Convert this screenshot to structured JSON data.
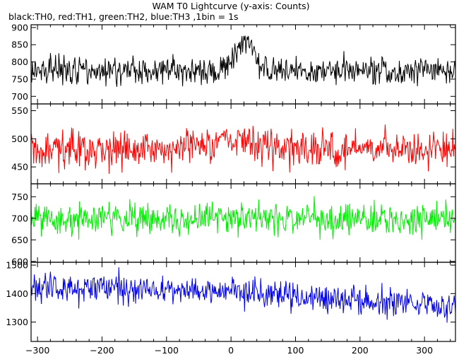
{
  "chart_data": {
    "type": "line",
    "title": "WAM T0 Lightcurve (y-axis: Counts)",
    "subtitle": "black:TH0, red:TH1, green:TH2, blue:TH3 ,1bin = 1s",
    "x_range": [
      -310,
      348
    ],
    "x_ticks": [
      -300,
      -200,
      -100,
      0,
      100,
      200,
      300
    ],
    "bin_seconds": 1,
    "grid": false,
    "panels": [
      {
        "name": "TH0",
        "color": "#000000",
        "ylim": [
          678,
          908
        ],
        "y_ticks": [
          700,
          750,
          800,
          850,
          900
        ],
        "base": 775,
        "noise": 28,
        "peaks": [
          {
            "t": 22,
            "amp": 80,
            "width": 14
          }
        ],
        "trend": []
      },
      {
        "name": "TH1",
        "color": "#ff0000",
        "ylim": [
          420,
          562
        ],
        "y_ticks": [
          450,
          500,
          550
        ],
        "base": 482,
        "noise": 22,
        "peaks": [
          {
            "t": 20,
            "amp": 18,
            "width": 25
          }
        ],
        "trend": []
      },
      {
        "name": "TH2",
        "color": "#00ee00",
        "ylim": [
          598,
          780
        ],
        "y_ticks": [
          600,
          650,
          700,
          750
        ],
        "base": 700,
        "noise": 26,
        "peaks": [],
        "trend": []
      },
      {
        "name": "TH3",
        "color": "#0000ee",
        "ylim": [
          1232,
          1510
        ],
        "y_ticks": [
          1300,
          1400,
          1500
        ],
        "base": 1420,
        "noise": 35,
        "peaks": [],
        "trend": [
          [
            -310,
            1425
          ],
          [
            0,
            1410
          ],
          [
            150,
            1385
          ],
          [
            348,
            1355
          ]
        ]
      }
    ]
  }
}
